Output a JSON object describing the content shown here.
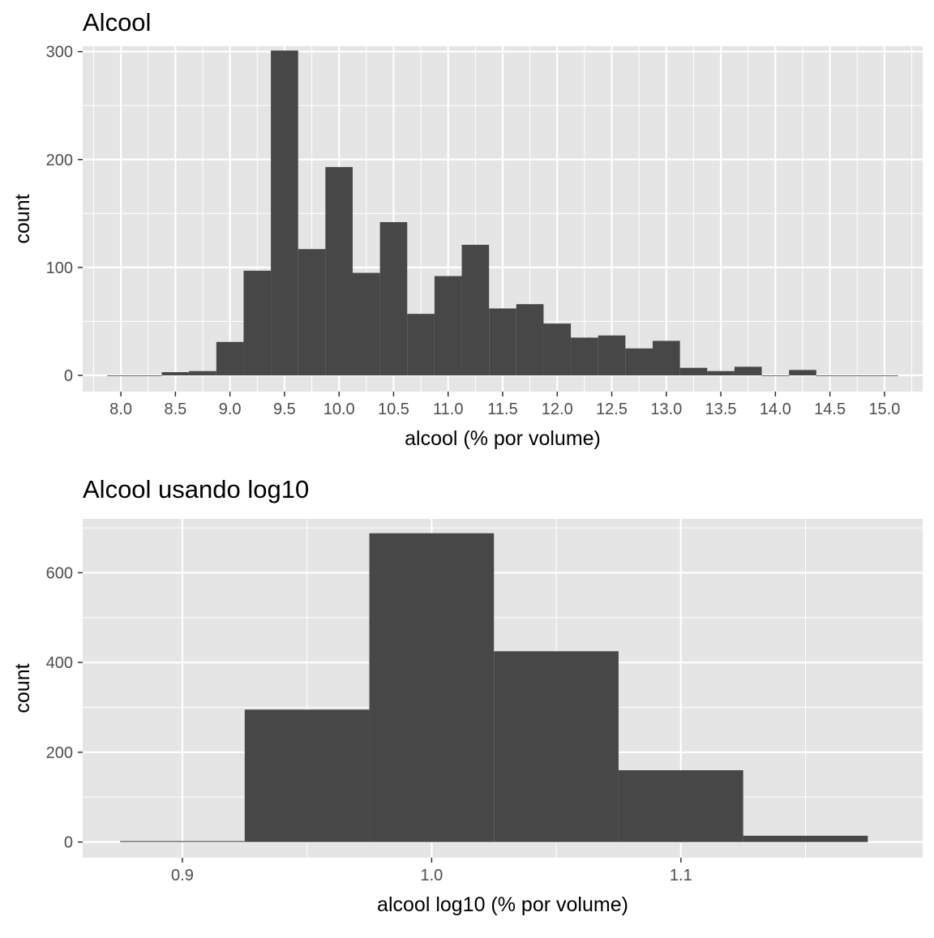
{
  "chart_data": [
    {
      "type": "bar",
      "title": "Alcool",
      "xlabel": "alcool (% por volume)",
      "ylabel": "count",
      "xlim": [
        7.65,
        15.35
      ],
      "ylim": [
        -15,
        305
      ],
      "bin_width": 0.25,
      "x_ticks": [
        "8.0",
        "8.5",
        "9.0",
        "9.5",
        "10.0",
        "10.5",
        "11.0",
        "11.5",
        "12.0",
        "12.5",
        "13.0",
        "13.5",
        "14.0",
        "14.5",
        "15.0"
      ],
      "y_ticks": [
        "0",
        "100",
        "200",
        "300"
      ],
      "grid": true,
      "bins": [
        {
          "x": 8.0,
          "count": 0
        },
        {
          "x": 8.25,
          "count": 0
        },
        {
          "x": 8.5,
          "count": 3
        },
        {
          "x": 8.75,
          "count": 4
        },
        {
          "x": 9.0,
          "count": 31
        },
        {
          "x": 9.25,
          "count": 97
        },
        {
          "x": 9.5,
          "count": 301
        },
        {
          "x": 9.75,
          "count": 117
        },
        {
          "x": 10.0,
          "count": 193
        },
        {
          "x": 10.25,
          "count": 95
        },
        {
          "x": 10.5,
          "count": 142
        },
        {
          "x": 10.75,
          "count": 57
        },
        {
          "x": 11.0,
          "count": 92
        },
        {
          "x": 11.25,
          "count": 121
        },
        {
          "x": 11.5,
          "count": 62
        },
        {
          "x": 11.75,
          "count": 66
        },
        {
          "x": 12.0,
          "count": 48
        },
        {
          "x": 12.25,
          "count": 35
        },
        {
          "x": 12.5,
          "count": 37
        },
        {
          "x": 12.75,
          "count": 25
        },
        {
          "x": 13.0,
          "count": 32
        },
        {
          "x": 13.25,
          "count": 7
        },
        {
          "x": 13.5,
          "count": 4
        },
        {
          "x": 13.75,
          "count": 8
        },
        {
          "x": 14.0,
          "count": 0
        },
        {
          "x": 14.25,
          "count": 5
        },
        {
          "x": 14.5,
          "count": 0
        },
        {
          "x": 14.75,
          "count": 0
        },
        {
          "x": 15.0,
          "count": 0
        }
      ],
      "bar_color": "#474747",
      "panel_background": "#e5e5e5",
      "grid_color": "#ffffff"
    },
    {
      "type": "bar",
      "title": "Alcool usando log10",
      "xlabel": "alcool log10 (% por volume)",
      "ylabel": "count",
      "xlim": [
        0.86,
        1.197
      ],
      "ylim": [
        -35,
        720
      ],
      "bin_width": 0.05,
      "x_ticks": [
        "0.9",
        "1.0",
        "1.1"
      ],
      "y_ticks": [
        "0",
        "200",
        "400",
        "600"
      ],
      "grid": true,
      "bins": [
        {
          "x": 0.9,
          "count": 2
        },
        {
          "x": 0.95,
          "count": 295
        },
        {
          "x": 1.0,
          "count": 688
        },
        {
          "x": 1.05,
          "count": 425
        },
        {
          "x": 1.1,
          "count": 160
        },
        {
          "x": 1.15,
          "count": 14
        }
      ],
      "bar_color": "#474747",
      "panel_background": "#e5e5e5",
      "grid_color": "#ffffff"
    }
  ]
}
